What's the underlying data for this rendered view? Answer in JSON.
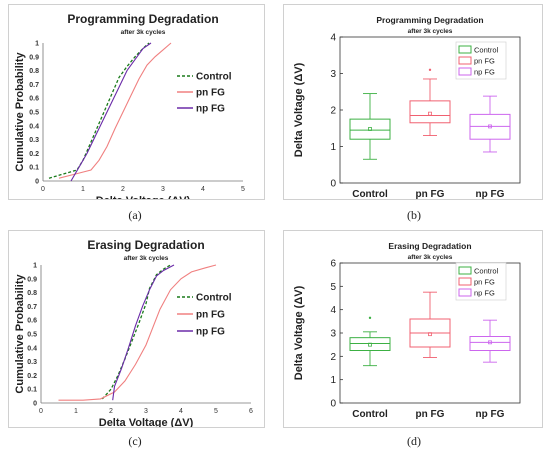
{
  "charts": {
    "a": {
      "type": "line",
      "title": "Programming Degradation",
      "subtitle": "after 3k cycles",
      "xlabel": "Delta Voltage (ΔV)",
      "ylabel": "Cumulative Probability",
      "xlim": [
        0,
        5
      ],
      "xticks": [
        "0",
        "1",
        "2",
        "3",
        "4",
        "5"
      ],
      "ylim": [
        0,
        1
      ],
      "yticks": [
        "0",
        "0.1",
        "0.2",
        "0.3",
        "0.4",
        "0.5",
        "0.6",
        "0.7",
        "0.8",
        "0.9",
        "1"
      ],
      "legend_position": "right",
      "series": [
        {
          "name": "Control",
          "color": "#1a7a1a",
          "dash": true,
          "x": [
            0.15,
            0.5,
            0.85,
            1.0,
            1.15,
            1.3,
            1.45,
            1.6,
            1.75,
            1.9,
            2.1,
            2.3,
            2.5,
            2.65
          ],
          "y": [
            0.02,
            0.05,
            0.08,
            0.15,
            0.25,
            0.35,
            0.45,
            0.55,
            0.65,
            0.75,
            0.83,
            0.9,
            0.96,
            1.0
          ]
        },
        {
          "name": "pn FG",
          "color": "#f08080",
          "dash": false,
          "x": [
            0.4,
            0.8,
            1.2,
            1.4,
            1.6,
            1.8,
            2.0,
            2.2,
            2.4,
            2.6,
            2.8,
            3.0,
            3.2
          ],
          "y": [
            0.02,
            0.05,
            0.08,
            0.15,
            0.25,
            0.38,
            0.5,
            0.62,
            0.74,
            0.84,
            0.9,
            0.95,
            1.0
          ]
        },
        {
          "name": "np FG",
          "color": "#6a2aa8",
          "dash": false,
          "x": [
            0.7,
            0.9,
            1.1,
            1.3,
            1.5,
            1.7,
            1.9,
            2.1,
            2.3,
            2.5,
            2.7
          ],
          "y": [
            0.0,
            0.1,
            0.2,
            0.32,
            0.44,
            0.56,
            0.68,
            0.8,
            0.88,
            0.96,
            1.0
          ]
        }
      ]
    },
    "b": {
      "type": "box",
      "title": "Programming Degradation",
      "subtitle": "after 3k cycles",
      "ylabel": "Delta Voltage (ΔV)",
      "ylim": [
        0,
        4
      ],
      "yticks": [
        "0",
        "1",
        "2",
        "3",
        "4"
      ],
      "legend_position": "top-right",
      "categories": [
        "Control",
        "pn FG",
        "np FG"
      ],
      "boxes": [
        {
          "name": "Control",
          "color": "#3cb043",
          "whisker_low": 0.65,
          "q1": 1.2,
          "median": 1.45,
          "q3": 1.75,
          "whisker_high": 2.45,
          "mean": 1.48,
          "outliers": []
        },
        {
          "name": "pn FG",
          "color": "#f06070",
          "whisker_low": 1.3,
          "q1": 1.65,
          "median": 1.85,
          "q3": 2.25,
          "whisker_high": 2.85,
          "mean": 1.9,
          "outliers": [
            3.1
          ]
        },
        {
          "name": "np FG",
          "color": "#cc66ee",
          "whisker_low": 0.85,
          "q1": 1.2,
          "median": 1.55,
          "q3": 1.88,
          "whisker_high": 2.38,
          "mean": 1.55,
          "outliers": []
        }
      ]
    },
    "c": {
      "type": "line",
      "title": "Erasing Degradation",
      "subtitle": "after 3k cycles",
      "xlabel": "Delta Voltage (ΔV)",
      "ylabel": "Cumulative Probability",
      "xlim": [
        0,
        6
      ],
      "xticks": [
        "0",
        "1",
        "2",
        "3",
        "4",
        "5",
        "6"
      ],
      "ylim": [
        0,
        1
      ],
      "yticks": [
        "0",
        "0.1",
        "0.2",
        "0.3",
        "0.4",
        "0.5",
        "0.6",
        "0.7",
        "0.8",
        "0.9",
        "1"
      ],
      "legend_position": "right",
      "series": [
        {
          "name": "Control",
          "color": "#1a7a1a",
          "dash": true,
          "x": [
            1.75,
            2.0,
            2.2,
            2.4,
            2.6,
            2.8,
            3.0,
            3.1,
            3.3,
            3.5,
            3.7
          ],
          "y": [
            0.03,
            0.1,
            0.2,
            0.32,
            0.45,
            0.58,
            0.72,
            0.83,
            0.93,
            0.97,
            1.0
          ]
        },
        {
          "name": "pn FG",
          "color": "#f08080",
          "dash": false,
          "x": [
            0.5,
            1.2,
            1.7,
            2.1,
            2.4,
            2.7,
            3.0,
            3.2,
            3.4,
            3.7,
            4.0,
            4.3,
            4.7,
            5.0
          ],
          "y": [
            0.02,
            0.02,
            0.03,
            0.08,
            0.16,
            0.28,
            0.42,
            0.55,
            0.68,
            0.82,
            0.9,
            0.95,
            0.98,
            1.0
          ]
        },
        {
          "name": "np FG",
          "color": "#6a2aa8",
          "dash": false,
          "x": [
            2.05,
            2.1,
            2.3,
            2.5,
            2.7,
            2.9,
            3.1,
            3.3,
            3.5,
            3.8
          ],
          "y": [
            0.02,
            0.12,
            0.25,
            0.4,
            0.56,
            0.7,
            0.82,
            0.92,
            0.96,
            1.0
          ]
        }
      ]
    },
    "d": {
      "type": "box",
      "title": "Erasing Degradation",
      "subtitle": "after 3k cycles",
      "ylabel": "Delta Voltage (ΔV)",
      "ylim": [
        0,
        6
      ],
      "yticks": [
        "0",
        "1",
        "2",
        "3",
        "4",
        "5",
        "6"
      ],
      "legend_position": "top-right",
      "categories": [
        "Control",
        "pn FG",
        "np FG"
      ],
      "boxes": [
        {
          "name": "Control",
          "color": "#3cb043",
          "whisker_low": 1.6,
          "q1": 2.25,
          "median": 2.55,
          "q3": 2.8,
          "whisker_high": 3.05,
          "mean": 2.5,
          "outliers": [
            3.65
          ]
        },
        {
          "name": "pn FG",
          "color": "#f06070",
          "whisker_low": 1.95,
          "q1": 2.4,
          "median": 3.0,
          "q3": 3.6,
          "whisker_high": 4.75,
          "mean": 2.95,
          "outliers": []
        },
        {
          "name": "np FG",
          "color": "#cc66ee",
          "whisker_low": 1.75,
          "q1": 2.25,
          "median": 2.6,
          "q3": 2.85,
          "whisker_high": 3.55,
          "mean": 2.6,
          "outliers": []
        }
      ]
    }
  },
  "captions": {
    "a": "(a)",
    "b": "(b)",
    "c": "(c)",
    "d": "(d)"
  }
}
